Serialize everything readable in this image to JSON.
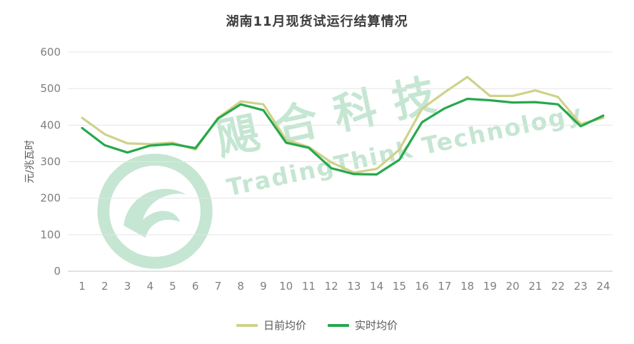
{
  "chart_data": {
    "type": "line",
    "title": "湖南11月现货试运行结算情况",
    "xlabel": "",
    "ylabel": "元/兆瓦时",
    "categories": [
      1,
      2,
      3,
      4,
      5,
      6,
      7,
      8,
      9,
      10,
      11,
      12,
      13,
      14,
      15,
      16,
      17,
      18,
      19,
      20,
      21,
      22,
      23,
      24
    ],
    "ylim": [
      0,
      600
    ],
    "ytick_step": 100,
    "grid": true,
    "legend_position": "bottom",
    "series": [
      {
        "name": "日前均价",
        "color": "#cfd28a",
        "values": [
          420,
          375,
          350,
          348,
          352,
          333,
          420,
          465,
          457,
          360,
          340,
          298,
          270,
          280,
          333,
          445,
          490,
          532,
          480,
          480,
          495,
          477,
          403,
          420
        ]
      },
      {
        "name": "实时均价",
        "color": "#27a84e",
        "values": [
          392,
          345,
          325,
          344,
          348,
          337,
          418,
          457,
          441,
          352,
          338,
          282,
          266,
          265,
          305,
          408,
          446,
          472,
          468,
          462,
          463,
          457,
          397,
          426
        ]
      }
    ]
  },
  "watermark": {
    "cn": "飓合科技",
    "en": "TradingThink Technology",
    "color": "#4fb377"
  }
}
